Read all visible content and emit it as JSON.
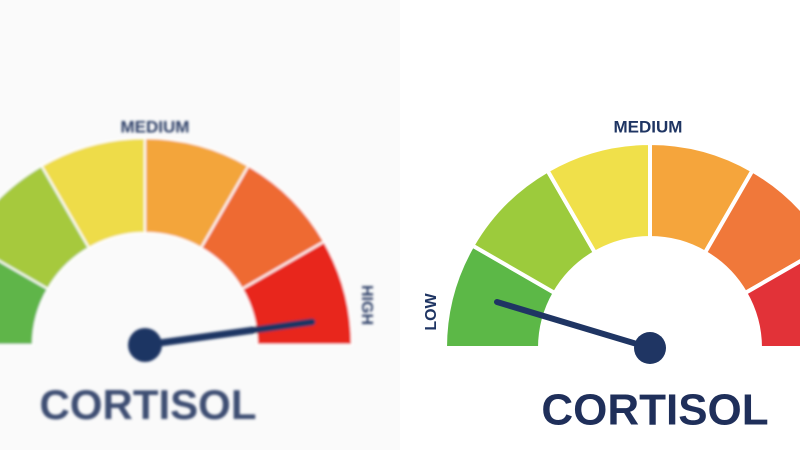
{
  "gauges": [
    {
      "labels": [
        "MEDIUM",
        "HIGH"
      ],
      "title": "CORTISOL"
    },
    {
      "labels": [
        "LOW",
        "MEDIUM"
      ],
      "title": "CORTISOL"
    }
  ]
}
